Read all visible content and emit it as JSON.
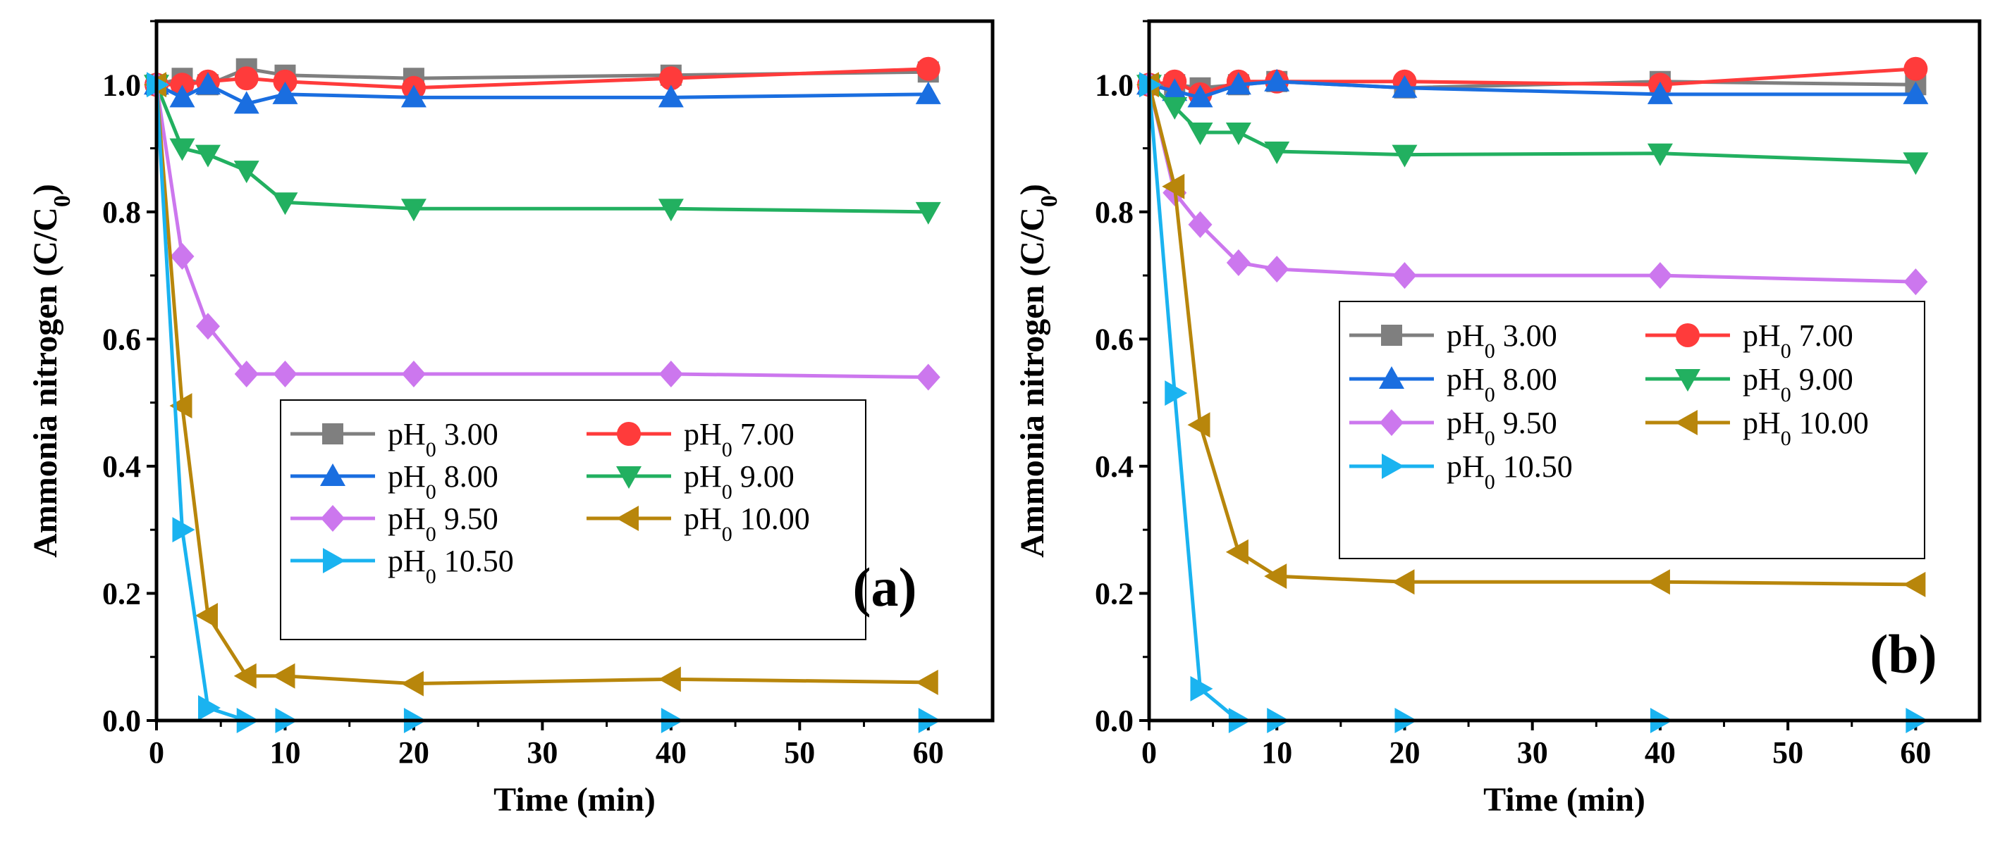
{
  "chart_data": [
    {
      "type": "line",
      "panel_label": "(a)",
      "xlabel": "Time (min)",
      "ylabel": "Ammonia nitrogen (C/C",
      "ylabel_sub": "0",
      "ylabel_close": ")",
      "xlim": [
        0,
        65
      ],
      "ylim": [
        0,
        1.1
      ],
      "xticks": [
        0,
        10,
        20,
        30,
        40,
        50,
        60
      ],
      "yticks": [
        0.0,
        0.2,
        0.4,
        0.6,
        0.8,
        1.0
      ],
      "xtick_labels": [
        "0",
        "10",
        "20",
        "30",
        "40",
        "50",
        "60"
      ],
      "ytick_labels": [
        "0.0",
        "0.2",
        "0.4",
        "0.6",
        "0.8",
        "1.0"
      ],
      "legend_position": "lower-right",
      "x": [
        0,
        2,
        4,
        7,
        10,
        20,
        40,
        60
      ],
      "series": [
        {
          "name": "pH0 3.00",
          "label_main": "pH",
          "label_sub": "0",
          "label_val": " 3.00",
          "color": "#7f7f7f",
          "marker": "square",
          "values": [
            1.0,
            1.01,
            1.0,
            1.025,
            1.015,
            1.01,
            1.015,
            1.02
          ]
        },
        {
          "name": "pH0 7.00",
          "label_main": "pH",
          "label_sub": "0",
          "label_val": " 7.00",
          "color": "#ff3b3b",
          "marker": "circle",
          "values": [
            1.0,
            1.0,
            1.005,
            1.01,
            1.005,
            0.995,
            1.01,
            1.025
          ]
        },
        {
          "name": "pH0 8.00",
          "label_main": "pH",
          "label_sub": "0",
          "label_val": " 8.00",
          "color": "#1a6ee0",
          "marker": "triangle-up",
          "values": [
            1.0,
            0.98,
            1.0,
            0.97,
            0.985,
            0.98,
            0.98,
            0.985
          ]
        },
        {
          "name": "pH0 9.00",
          "label_main": "pH",
          "label_sub": "0",
          "label_val": " 9.00",
          "color": "#22b060",
          "marker": "triangle-down",
          "values": [
            1.0,
            0.9,
            0.89,
            0.865,
            0.815,
            0.805,
            0.805,
            0.8
          ]
        },
        {
          "name": "pH0 9.50",
          "label_main": "pH",
          "label_sub": "0",
          "label_val": " 9.50",
          "color": "#cc77ee",
          "marker": "diamond",
          "values": [
            1.0,
            0.73,
            0.62,
            0.545,
            0.545,
            0.545,
            0.545,
            0.54
          ]
        },
        {
          "name": "pH0 10.00",
          "label_main": "pH",
          "label_sub": "0",
          "label_val": " 10.00",
          "color": "#b8860b",
          "marker": "triangle-left",
          "values": [
            1.0,
            0.495,
            0.165,
            0.07,
            0.07,
            0.058,
            0.065,
            0.06
          ]
        },
        {
          "name": "pH0 10.50",
          "label_main": "pH",
          "label_sub": "0",
          "label_val": " 10.50",
          "color": "#1ab3f0",
          "marker": "triangle-right",
          "values": [
            1.0,
            0.3,
            0.02,
            0.0,
            0.0,
            0.0,
            0.0,
            0.0
          ]
        }
      ]
    },
    {
      "type": "line",
      "panel_label": "(b)",
      "xlabel": "Time (min)",
      "ylabel": "Ammonia nitrogen (C/C",
      "ylabel_sub": "0",
      "ylabel_close": ")",
      "xlim": [
        0,
        65
      ],
      "ylim": [
        0,
        1.1
      ],
      "xticks": [
        0,
        10,
        20,
        30,
        40,
        50,
        60
      ],
      "yticks": [
        0.0,
        0.2,
        0.4,
        0.6,
        0.8,
        1.0
      ],
      "xtick_labels": [
        "0",
        "10",
        "20",
        "30",
        "40",
        "50",
        "60"
      ],
      "ytick_labels": [
        "0.0",
        "0.2",
        "0.4",
        "0.6",
        "0.8",
        "1.0"
      ],
      "legend_position": "middle-right",
      "x": [
        0,
        2,
        4,
        7,
        10,
        20,
        40,
        60
      ],
      "series": [
        {
          "name": "pH0 3.00",
          "label_main": "pH",
          "label_sub": "0",
          "label_val": " 3.00",
          "color": "#7f7f7f",
          "marker": "square",
          "values": [
            1.0,
            1.0,
            0.995,
            1.0,
            1.005,
            0.995,
            1.005,
            1.0
          ]
        },
        {
          "name": "pH0 7.00",
          "label_main": "pH",
          "label_sub": "0",
          "label_val": " 7.00",
          "color": "#ff3b3b",
          "marker": "circle",
          "values": [
            1.0,
            1.005,
            0.985,
            1.005,
            1.005,
            1.005,
            1.0,
            1.025
          ]
        },
        {
          "name": "pH0 8.00",
          "label_main": "pH",
          "label_sub": "0",
          "label_val": " 8.00",
          "color": "#1a6ee0",
          "marker": "triangle-up",
          "values": [
            1.0,
            0.99,
            0.98,
            1.0,
            1.005,
            0.995,
            0.985,
            0.985
          ]
        },
        {
          "name": "pH0 9.00",
          "label_main": "pH",
          "label_sub": "0",
          "label_val": " 9.00",
          "color": "#22b060",
          "marker": "triangle-down",
          "values": [
            1.0,
            0.965,
            0.925,
            0.925,
            0.895,
            0.89,
            0.892,
            0.878
          ]
        },
        {
          "name": "pH0 9.50",
          "label_main": "pH",
          "label_sub": "0",
          "label_val": " 9.50",
          "color": "#cc77ee",
          "marker": "diamond",
          "values": [
            1.0,
            0.83,
            0.78,
            0.72,
            0.71,
            0.7,
            0.7,
            0.69
          ]
        },
        {
          "name": "pH0 10.00",
          "label_main": "pH",
          "label_sub": "0",
          "label_val": " 10.00",
          "color": "#b8860b",
          "marker": "triangle-left",
          "values": [
            1.0,
            0.84,
            0.465,
            0.265,
            0.227,
            0.218,
            0.218,
            0.214
          ]
        },
        {
          "name": "pH0 10.50",
          "label_main": "pH",
          "label_sub": "0",
          "label_val": " 10.50",
          "color": "#1ab3f0",
          "marker": "triangle-right",
          "values": [
            1.0,
            0.515,
            0.05,
            0.0,
            0.0,
            0.0,
            0.0,
            0.0
          ]
        }
      ]
    }
  ]
}
